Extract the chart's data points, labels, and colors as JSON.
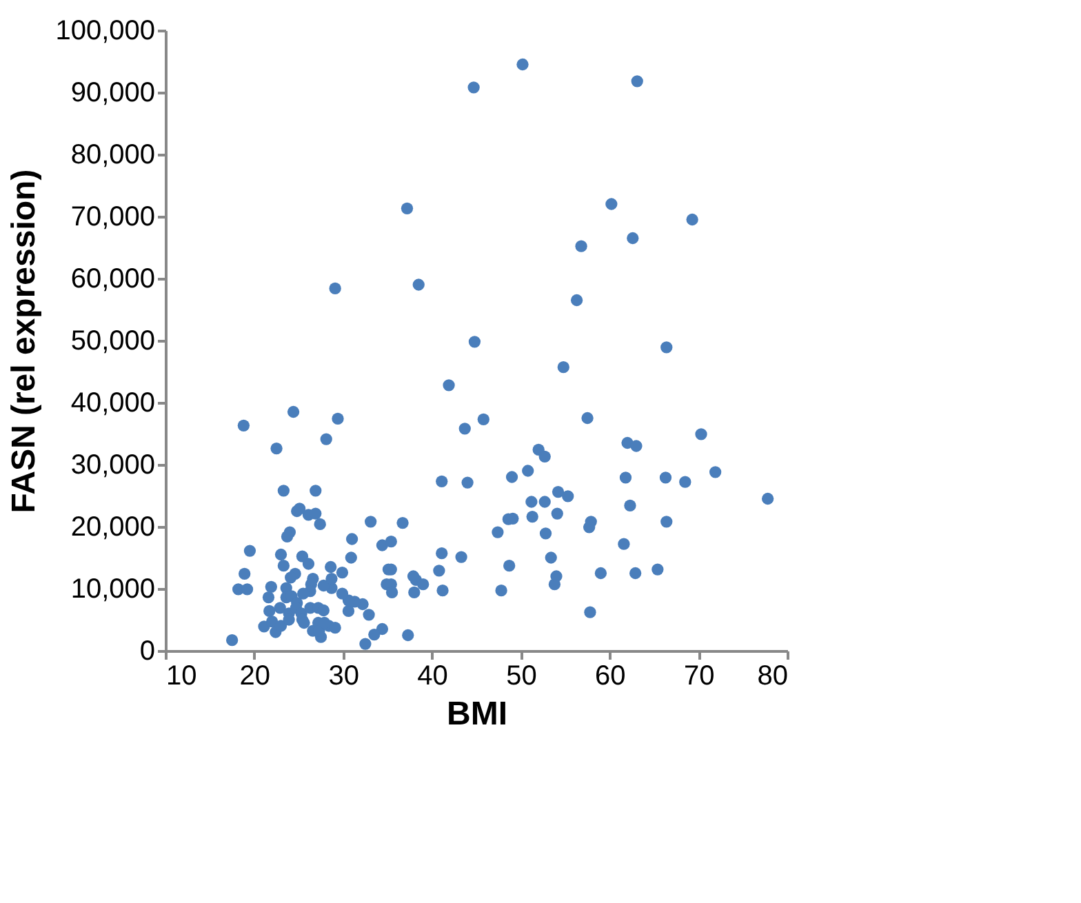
{
  "chart_data": {
    "type": "scatter",
    "xlabel": "BMI",
    "ylabel": "FASN (rel expression)",
    "xlim": [
      10,
      80
    ],
    "xticks": [
      10,
      20,
      30,
      40,
      50,
      60,
      70,
      80
    ],
    "ylim": [
      0,
      100000
    ],
    "yticks": [
      {
        "value": 0,
        "label": "0"
      },
      {
        "value": 10000,
        "label": "10,000"
      },
      {
        "value": 20000,
        "label": "20,000"
      },
      {
        "value": 30000,
        "label": "30,000"
      },
      {
        "value": 40000,
        "label": "40,000"
      },
      {
        "value": 50000,
        "label": "50,000"
      },
      {
        "value": 60000,
        "label": "60,000"
      },
      {
        "value": 70000,
        "label": "70,000"
      },
      {
        "value": 80000,
        "label": "80,000"
      },
      {
        "value": 90000,
        "label": "90,000"
      },
      {
        "value": 100000,
        "label": "100,000"
      }
    ],
    "grid": false,
    "legend": false,
    "marker": "circle",
    "series": [
      {
        "color": "#4a7ebb",
        "x": [
          50.2,
          44.7,
          63.1,
          37.2,
          60.2,
          69.3,
          62.6,
          56.8,
          29.1,
          38.5,
          56.3,
          44.8,
          66.4,
          54.8,
          41.9,
          18.8,
          24.4,
          29.4,
          28.1,
          43.7,
          45.8,
          57.5,
          70.3,
          62.0,
          63.0,
          52.0,
          52.7,
          22.5,
          50.8,
          71.9,
          66.3,
          68.5,
          61.8,
          41.1,
          44.0,
          49.0,
          23.3,
          26.9,
          54.2,
          55.3,
          77.8,
          52.7,
          51.2,
          62.3,
          36.7,
          33.1,
          57.9,
          57.7,
          66.4,
          48.6,
          49.1,
          51.3,
          54.1,
          47.4,
          52.8,
          61.6,
          41.1,
          43.3,
          53.4,
          48.7,
          59.0,
          62.9,
          65.4,
          40.8,
          41.2,
          47.8,
          53.8,
          54.0,
          57.8,
          37.3,
          32.5,
          17.5,
          24.8,
          25.1,
          26.1,
          26.9,
          27.4,
          24.0,
          23.7,
          19.5,
          23.0,
          23.3,
          25.4,
          26.1,
          28.6,
          29.9,
          30.9,
          31.0,
          34.4,
          35.4,
          35.1,
          35.4,
          34.9,
          35.4,
          35.5,
          38.0,
          38.2,
          39.0,
          37.9,
          34.4,
          33.5,
          32.9,
          32.2,
          31.3,
          30.6,
          30.6,
          29.9,
          28.7,
          27.8,
          28.7,
          26.6,
          26.4,
          26.3,
          25.5,
          24.6,
          24.1,
          21.9,
          21.6,
          18.9,
          18.2,
          19.2,
          21.1,
          22.0,
          22.4,
          23.0,
          22.9,
          21.7,
          23.6,
          23.6,
          24.2,
          24.8,
          23.9,
          23.9,
          24.7,
          25.3,
          25.4,
          25.6,
          26.3,
          27.2,
          27.8,
          26.6,
          27.2,
          27.5,
          27.3,
          28.4,
          29.1,
          27.9
        ],
        "values": [
          94500,
          90800,
          91800,
          71300,
          72000,
          69500,
          66500,
          65200,
          58400,
          59000,
          56500,
          49800,
          48900,
          45700,
          42800,
          36300,
          38500,
          37400,
          34100,
          35800,
          37300,
          37500,
          34900,
          33500,
          33000,
          32400,
          31300,
          32600,
          29000,
          28800,
          27900,
          27200,
          27900,
          27300,
          27100,
          28000,
          25800,
          25800,
          25600,
          24900,
          24500,
          24000,
          24000,
          23400,
          20600,
          20800,
          20800,
          19900,
          20800,
          21200,
          21300,
          21600,
          22100,
          19100,
          18900,
          17200,
          15700,
          15100,
          15000,
          13700,
          12500,
          12500,
          13100,
          12900,
          9700,
          9700,
          10700,
          12000,
          6200,
          2500,
          1100,
          1700,
          22500,
          22900,
          21900,
          22100,
          20400,
          19100,
          18400,
          16100,
          15500,
          13700,
          15200,
          14000,
          13500,
          12600,
          15000,
          18000,
          17000,
          17600,
          13100,
          13100,
          10700,
          10700,
          9400,
          9400,
          11400,
          10700,
          12000,
          3500,
          2600,
          5800,
          7500,
          7900,
          6400,
          8100,
          9200,
          10100,
          10500,
          11600,
          11600,
          10700,
          9600,
          9200,
          12400,
          11800,
          10300,
          8600,
          12400,
          9900,
          9900,
          3900,
          4700,
          3000,
          4000,
          6900,
          6400,
          10100,
          8600,
          8800,
          7700,
          6000,
          5000,
          6900,
          6000,
          5000,
          4500,
          6900,
          6900,
          6500,
          3200,
          4500,
          2200,
          3200,
          4000,
          3700,
          4500
        ]
      }
    ]
  }
}
